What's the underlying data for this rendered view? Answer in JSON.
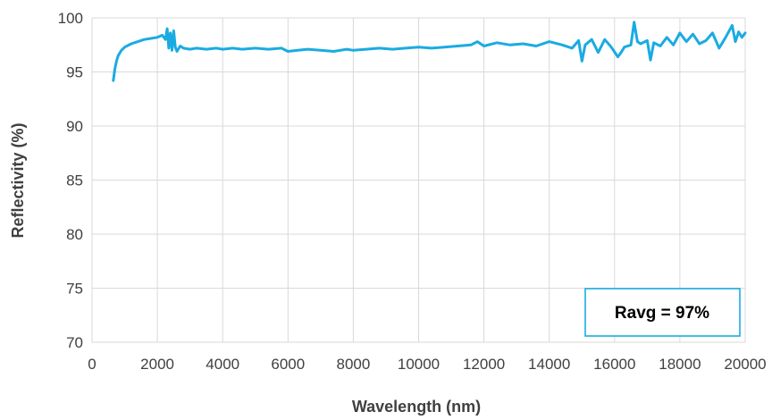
{
  "chart_data": {
    "type": "line",
    "title": "",
    "xlabel": "Wavelength (nm)",
    "ylabel": "Reflectivity (%)",
    "xlim": [
      0,
      20000
    ],
    "ylim": [
      70,
      100
    ],
    "xticks": [
      0,
      2000,
      4000,
      6000,
      8000,
      10000,
      12000,
      14000,
      16000,
      18000,
      20000
    ],
    "yticks": [
      70,
      75,
      80,
      85,
      90,
      95,
      100
    ],
    "grid": true,
    "legend": "none",
    "annotation": "Ravg = 97%",
    "colors": {
      "series": "#1aabe2",
      "annotation_border": "#1aabe2",
      "grid": "#d9d9d9"
    },
    "series": [
      {
        "x": [
          650,
          700,
          750,
          800,
          900,
          1000,
          1200,
          1400,
          1600,
          1800,
          2000,
          2150,
          2250,
          2300,
          2350,
          2400,
          2450,
          2500,
          2550,
          2600,
          2700,
          2800,
          3000,
          3200,
          3500,
          3800,
          4000,
          4300,
          4600,
          5000,
          5400,
          5800,
          6000,
          6300,
          6600,
          7000,
          7400,
          7800,
          8000,
          8400,
          8800,
          9200,
          9600,
          10000,
          10400,
          10800,
          11200,
          11600,
          11800,
          12000,
          12400,
          12800,
          13200,
          13600,
          14000,
          14400,
          14700,
          14900,
          15000,
          15100,
          15300,
          15500,
          15700,
          15900,
          16100,
          16200,
          16300,
          16500,
          16600,
          16700,
          16800,
          17000,
          17100,
          17200,
          17400,
          17600,
          17800,
          18000,
          18200,
          18400,
          18600,
          18800,
          19000,
          19200,
          19400,
          19600,
          19700,
          19800,
          19900,
          20000
        ],
        "y": [
          94.2,
          95.3,
          96.0,
          96.5,
          97.0,
          97.3,
          97.6,
          97.8,
          98.0,
          98.1,
          98.2,
          98.4,
          98.0,
          99.0,
          97.2,
          98.6,
          97.0,
          98.8,
          97.3,
          96.9,
          97.4,
          97.2,
          97.1,
          97.2,
          97.1,
          97.2,
          97.1,
          97.2,
          97.1,
          97.2,
          97.1,
          97.2,
          96.9,
          97.0,
          97.1,
          97.0,
          96.9,
          97.1,
          97.0,
          97.1,
          97.2,
          97.1,
          97.2,
          97.3,
          97.2,
          97.3,
          97.4,
          97.5,
          97.8,
          97.4,
          97.7,
          97.5,
          97.6,
          97.4,
          97.8,
          97.5,
          97.2,
          97.9,
          96.0,
          97.5,
          98.0,
          96.8,
          98.0,
          97.3,
          96.4,
          96.8,
          97.3,
          97.5,
          99.6,
          97.8,
          97.6,
          97.9,
          96.1,
          97.7,
          97.4,
          98.2,
          97.5,
          98.6,
          97.8,
          98.5,
          97.6,
          97.9,
          98.6,
          97.2,
          98.2,
          99.3,
          97.8,
          98.7,
          98.2,
          98.6
        ]
      }
    ]
  }
}
